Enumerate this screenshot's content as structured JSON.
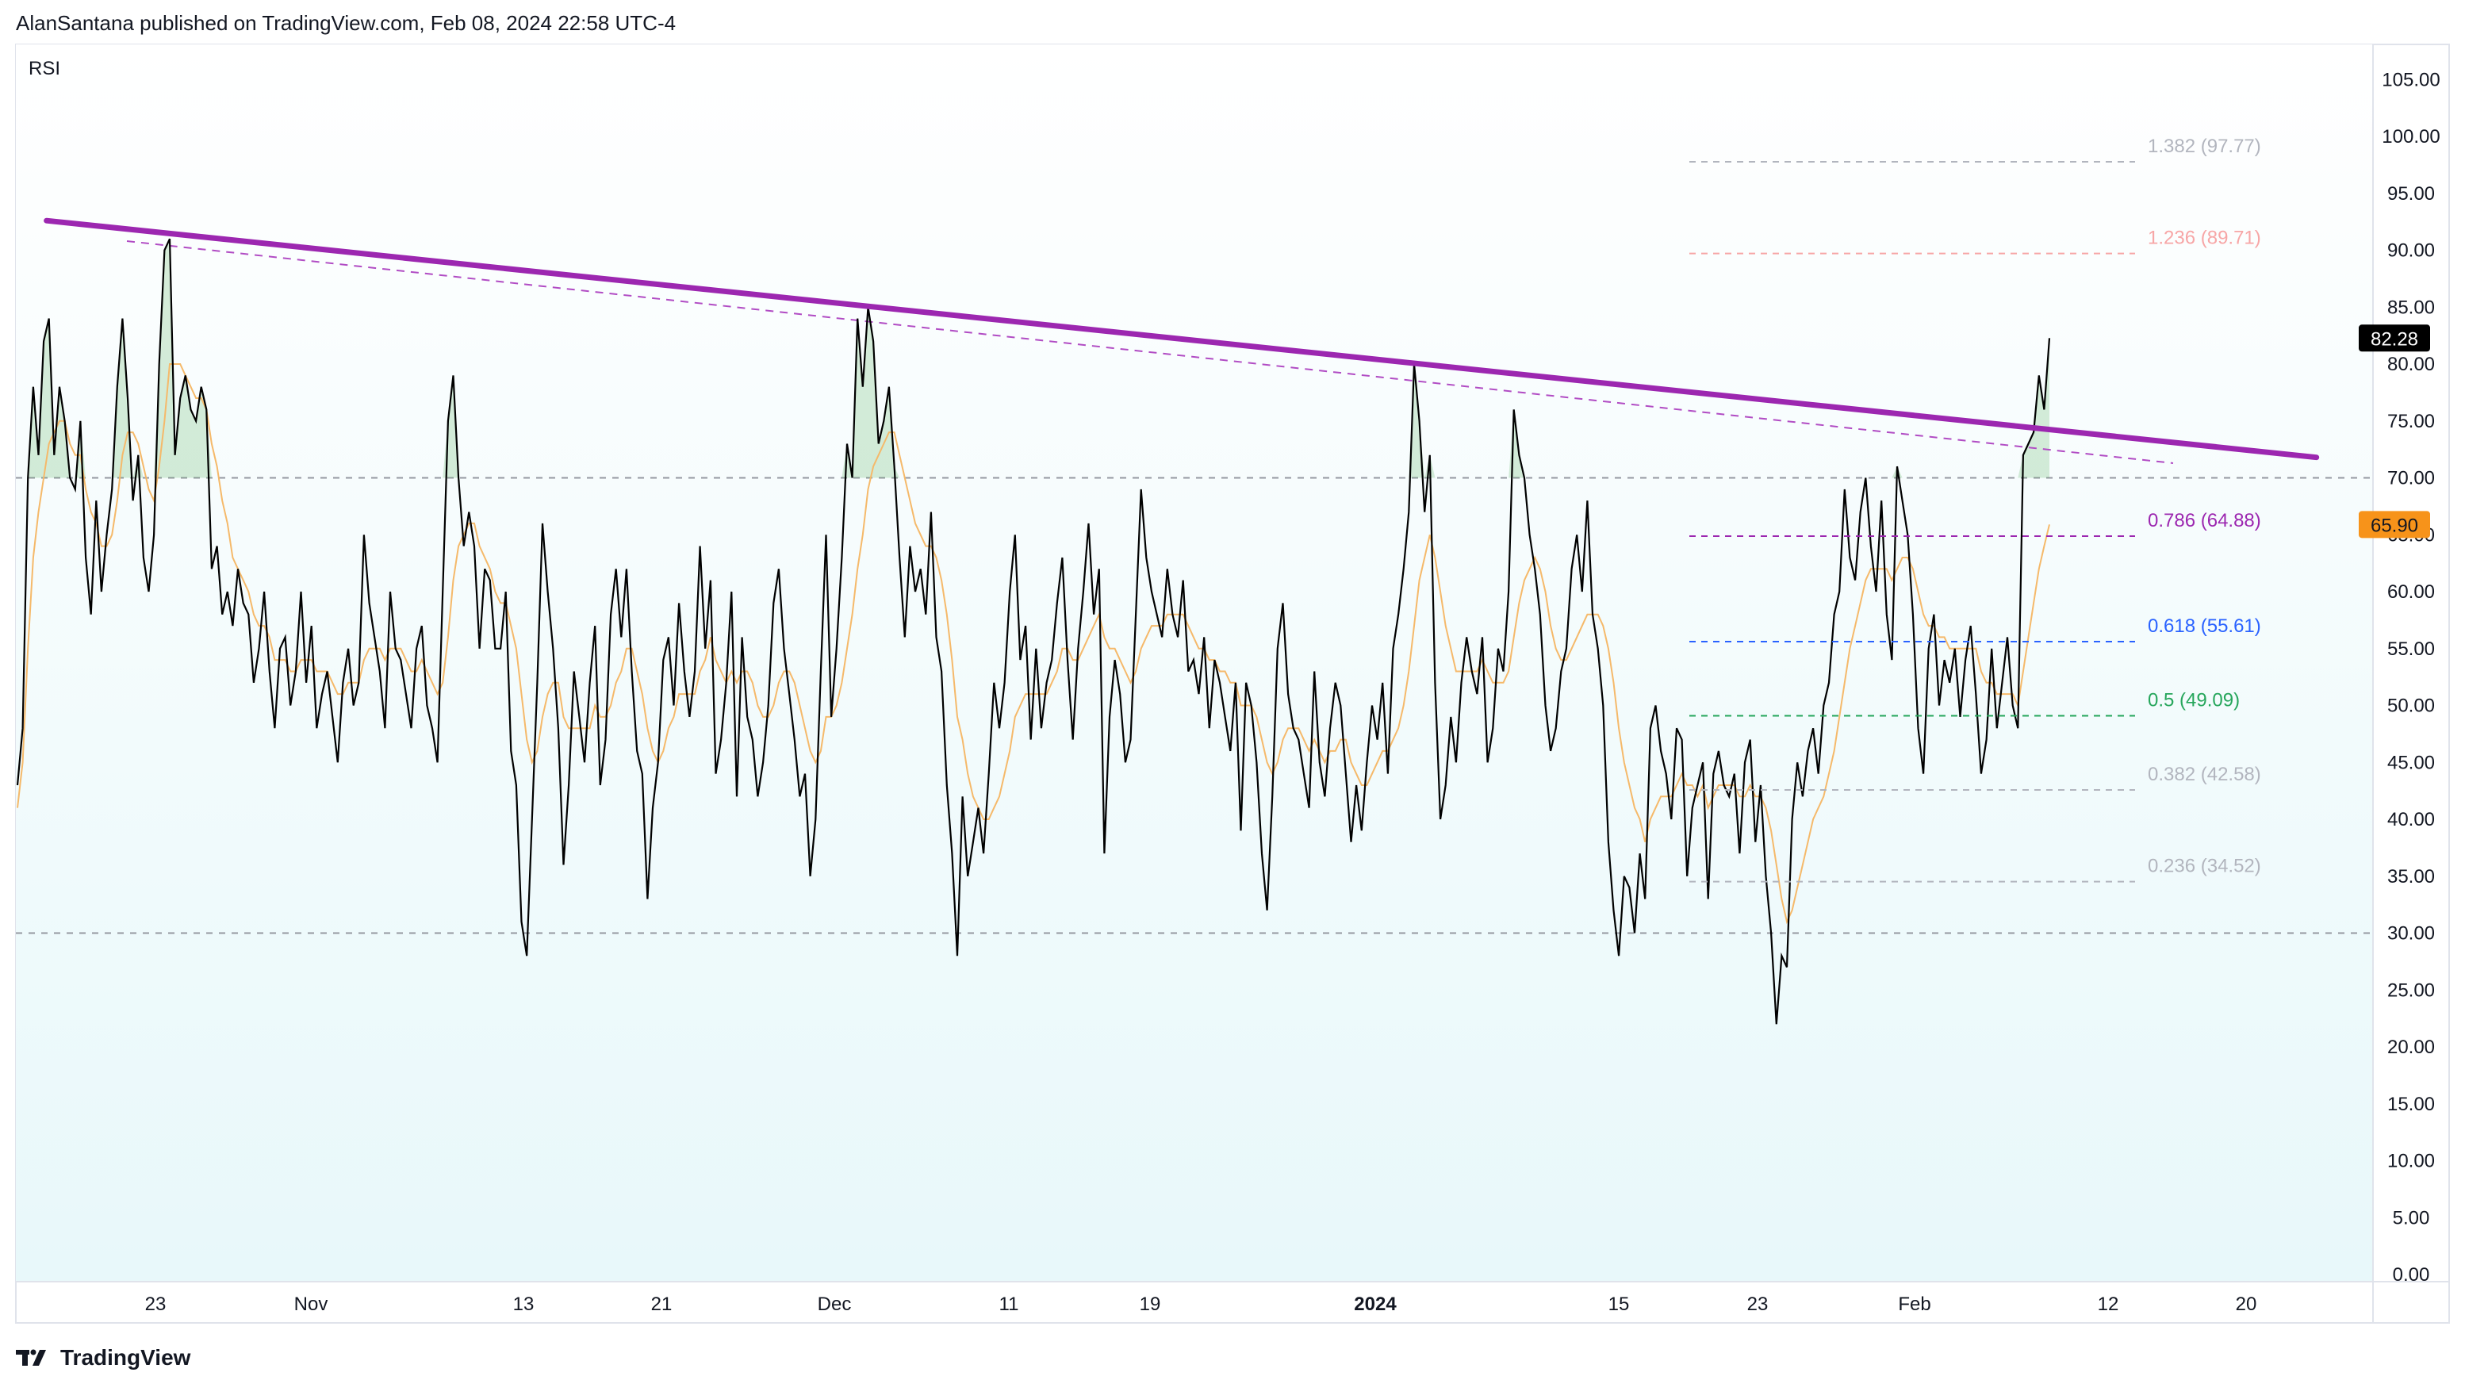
{
  "header": {
    "publisher_text": "AlanSantana published on TradingView.com, Feb 08, 2024 22:58 UTC-4"
  },
  "footer": {
    "brand": "TradingView",
    "logo_icon": "tradingview-logo-icon"
  },
  "chart_data": {
    "type": "line",
    "title": "RSI",
    "ylim": [
      0,
      107
    ],
    "y_ticks": [
      "105.00",
      "100.00",
      "95.00",
      "90.00",
      "85.00",
      "80.00",
      "75.00",
      "70.00",
      "65.00",
      "60.00",
      "55.00",
      "50.00",
      "45.00",
      "40.00",
      "35.00",
      "30.00",
      "25.00",
      "20.00",
      "15.00",
      "10.00",
      "5.00",
      "0.00"
    ],
    "x_ticks": [
      "23",
      "Nov",
      "13",
      "21",
      "Dec",
      "11",
      "19",
      "2024",
      "15",
      "23",
      "Feb",
      "12",
      "20"
    ],
    "bands": {
      "upper": 70,
      "lower": 30
    },
    "current_values": [
      {
        "label": "82.28",
        "value": 82.28,
        "color": "#000000"
      },
      {
        "label": "65.90",
        "value": 65.9,
        "color": "#f7931a"
      }
    ],
    "series": [
      {
        "name": "RSI",
        "color": "#000000",
        "values": [
          43,
          48,
          70,
          78,
          72,
          82,
          84,
          72,
          78,
          75,
          70,
          69,
          75,
          63,
          58,
          68,
          60,
          65,
          69,
          78,
          84,
          77,
          68,
          72,
          63,
          60,
          65,
          80,
          90,
          91,
          72,
          77,
          79,
          76,
          75,
          78,
          76,
          62,
          64,
          58,
          60,
          57,
          62,
          59,
          58,
          52,
          55,
          60,
          53,
          48,
          55,
          56,
          50,
          53,
          60,
          52,
          57,
          48,
          51,
          53,
          49,
          45,
          52,
          55,
          50,
          52,
          65,
          59,
          56,
          53,
          48,
          60,
          55,
          54,
          51,
          48,
          55,
          57,
          50,
          48,
          45,
          60,
          75,
          79,
          70,
          64,
          67,
          64,
          55,
          62,
          61,
          55,
          55,
          60,
          46,
          43,
          31,
          28,
          40,
          52,
          66,
          60,
          55,
          48,
          36,
          43,
          53,
          49,
          45,
          52,
          57,
          43,
          47,
          58,
          62,
          56,
          62,
          53,
          46,
          44,
          33,
          41,
          45,
          54,
          56,
          50,
          59,
          53,
          49,
          53,
          64,
          55,
          61,
          44,
          47,
          52,
          60,
          42,
          56,
          49,
          47,
          42,
          45,
          50,
          59,
          62,
          55,
          51,
          47,
          42,
          44,
          35,
          40,
          53,
          65,
          49,
          55,
          63,
          73,
          70,
          84,
          78,
          85,
          82,
          73,
          75,
          78,
          71,
          63,
          56,
          64,
          60,
          62,
          58,
          67,
          56,
          53,
          43,
          37,
          28,
          42,
          35,
          38,
          41,
          37,
          44,
          52,
          48,
          52,
          60,
          65,
          54,
          57,
          47,
          55,
          48,
          52,
          54,
          59,
          63,
          54,
          47,
          55,
          60,
          66,
          58,
          62,
          37,
          49,
          54,
          51,
          45,
          47,
          58,
          69,
          63,
          60,
          58,
          56,
          62,
          58,
          56,
          61,
          53,
          54,
          51,
          56,
          48,
          54,
          52,
          49,
          46,
          52,
          39,
          52,
          50,
          45,
          37,
          32,
          42,
          55,
          59,
          51,
          48,
          47,
          44,
          41,
          53,
          45,
          42,
          48,
          52,
          50,
          44,
          38,
          43,
          39,
          45,
          50,
          47,
          52,
          44,
          55,
          58,
          62,
          67,
          80,
          75,
          67,
          72,
          52,
          40,
          43,
          49,
          45,
          52,
          56,
          53,
          51,
          56,
          45,
          48,
          55,
          53,
          60,
          76,
          72,
          70,
          65,
          62,
          58,
          50,
          46,
          48,
          53,
          55,
          62,
          65,
          60,
          68,
          58,
          55,
          50,
          38,
          32,
          28,
          35,
          34,
          30,
          37,
          33,
          48,
          50,
          46,
          44,
          40,
          48,
          47,
          35,
          41,
          43,
          45,
          33,
          44,
          46,
          43,
          42,
          44,
          37,
          45,
          47,
          38,
          43,
          35,
          30,
          22,
          28,
          27,
          40,
          45,
          42,
          46,
          48,
          44,
          50,
          52,
          58,
          60,
          69,
          63,
          61,
          67,
          70,
          64,
          60,
          68,
          58,
          54,
          71,
          68,
          65,
          58,
          48,
          44,
          55,
          58,
          50,
          54,
          52,
          55,
          49,
          54,
          57,
          51,
          44,
          47,
          55,
          48,
          52,
          56,
          50,
          48,
          72,
          73,
          74,
          79,
          76,
          82.28
        ]
      },
      {
        "name": "RSI-based MA",
        "color": "#f5b96a",
        "values": [
          41,
          45,
          55,
          63,
          67,
          70,
          73,
          74,
          75,
          75,
          73,
          72,
          72,
          69,
          67,
          66,
          64,
          64,
          65,
          68,
          72,
          74,
          74,
          73,
          71,
          69,
          68,
          71,
          75,
          80,
          80,
          80,
          79,
          78,
          77,
          77,
          76,
          73,
          71,
          68,
          66,
          63,
          62,
          61,
          60,
          58,
          57,
          57,
          56,
          54,
          54,
          54,
          53,
          53,
          54,
          54,
          54,
          53,
          53,
          53,
          52,
          51,
          51,
          52,
          52,
          52,
          54,
          55,
          55,
          55,
          54,
          55,
          55,
          55,
          54,
          53,
          53,
          54,
          53,
          52,
          51,
          52,
          56,
          61,
          64,
          65,
          66,
          66,
          64,
          63,
          62,
          60,
          59,
          59,
          57,
          55,
          51,
          47,
          45,
          46,
          49,
          51,
          52,
          52,
          49,
          48,
          48,
          48,
          48,
          48,
          50,
          49,
          49,
          50,
          52,
          53,
          55,
          55,
          53,
          51,
          48,
          46,
          45,
          46,
          48,
          49,
          51,
          51,
          51,
          51,
          53,
          54,
          56,
          54,
          53,
          52,
          53,
          52,
          53,
          53,
          52,
          50,
          49,
          49,
          50,
          52,
          53,
          53,
          52,
          50,
          48,
          46,
          45,
          46,
          49,
          49,
          50,
          52,
          55,
          58,
          62,
          65,
          69,
          71,
          72,
          73,
          74,
          74,
          72,
          70,
          68,
          66,
          65,
          64,
          64,
          63,
          61,
          58,
          54,
          49,
          47,
          44,
          42,
          41,
          40,
          40,
          41,
          42,
          44,
          46,
          49,
          50,
          51,
          51,
          51,
          51,
          51,
          52,
          53,
          55,
          55,
          54,
          54,
          55,
          56,
          57,
          58,
          56,
          55,
          55,
          54,
          53,
          52,
          53,
          55,
          56,
          57,
          57,
          57,
          58,
          58,
          58,
          58,
          57,
          56,
          55,
          55,
          54,
          54,
          53,
          53,
          52,
          52,
          50,
          50,
          50,
          49,
          47,
          45,
          44,
          45,
          47,
          48,
          48,
          48,
          47,
          46,
          47,
          46,
          45,
          46,
          46,
          47,
          47,
          45,
          44,
          43,
          43,
          44,
          45,
          46,
          46,
          47,
          48,
          50,
          53,
          57,
          61,
          63,
          65,
          63,
          60,
          57,
          55,
          53,
          53,
          53,
          53,
          53,
          54,
          53,
          52,
          52,
          52,
          53,
          56,
          59,
          61,
          62,
          63,
          62,
          60,
          57,
          55,
          54,
          54,
          55,
          56,
          57,
          58,
          58,
          58,
          57,
          55,
          52,
          48,
          45,
          43,
          41,
          40,
          38,
          40,
          41,
          42,
          42,
          42,
          43,
          44,
          43,
          43,
          42,
          43,
          41,
          42,
          43,
          43,
          43,
          43,
          42,
          42,
          43,
          42,
          42,
          41,
          39,
          36,
          33,
          31,
          32,
          34,
          36,
          38,
          40,
          41,
          42,
          44,
          46,
          49,
          52,
          55,
          57,
          59,
          61,
          62,
          62,
          62,
          62,
          61,
          62,
          63,
          63,
          62,
          60,
          58,
          57,
          57,
          56,
          56,
          55,
          55,
          55,
          55,
          55,
          55,
          53,
          52,
          52,
          51,
          51,
          51,
          51,
          50,
          53,
          56,
          59,
          62,
          64,
          65.9
        ]
      }
    ],
    "trendline": {
      "color": "#9c27b0",
      "from": {
        "x_frac": 0.013,
        "y": 92.6
      },
      "to": {
        "x_frac": 0.976,
        "y": 71.8
      }
    },
    "fib_levels": [
      {
        "label": "1.382 (97.77)",
        "value": 97.77,
        "color": "#b2b5be"
      },
      {
        "label": "1.236 (89.71)",
        "value": 89.71,
        "color": "#f7a6a6"
      },
      {
        "label": "0.786 (64.88)",
        "value": 64.88,
        "color": "#9c27b0"
      },
      {
        "label": "0.618 (55.61)",
        "value": 55.61,
        "color": "#2962ff"
      },
      {
        "label": "0.5 (49.09)",
        "value": 49.09,
        "color": "#26a65b"
      },
      {
        "label": "0.382 (42.58)",
        "value": 42.58,
        "color": "#b2b5be"
      },
      {
        "label": "0.236 (34.52)",
        "value": 34.52,
        "color": "#b2b5be"
      }
    ]
  }
}
